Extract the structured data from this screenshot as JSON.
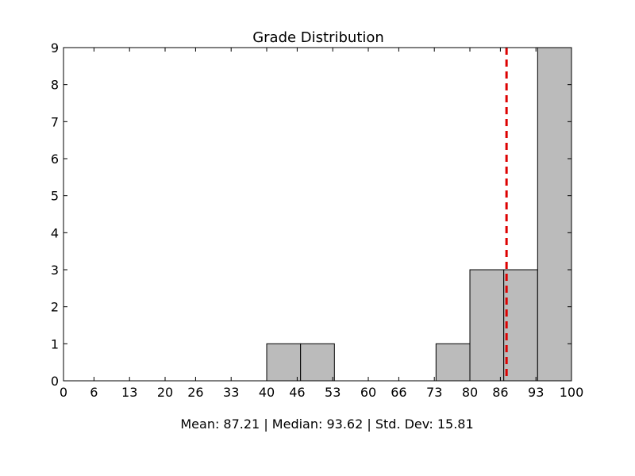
{
  "chart_data": {
    "type": "bar",
    "title": "Grade Distribution",
    "xlabel": "",
    "ylabel": "",
    "xlim": [
      0,
      100
    ],
    "ylim": [
      0,
      9
    ],
    "grid": false,
    "x_ticks": [
      "0",
      "6",
      "13",
      "20",
      "26",
      "33",
      "40",
      "46",
      "53",
      "60",
      "66",
      "73",
      "80",
      "86",
      "93",
      "100"
    ],
    "y_ticks": [
      "0",
      "1",
      "2",
      "3",
      "4",
      "5",
      "6",
      "7",
      "8",
      "9"
    ],
    "bin_edges": [
      0,
      6.67,
      13.33,
      20,
      26.67,
      33.33,
      40,
      46.67,
      53.33,
      60,
      66.67,
      73.33,
      80,
      86.67,
      93.33,
      100
    ],
    "counts": [
      0,
      0,
      0,
      0,
      0,
      0,
      1,
      1,
      0,
      0,
      0,
      1,
      3,
      3,
      9
    ],
    "mean_line": {
      "value": 87.21,
      "color": "#dd0000"
    },
    "bar_color": "#bbbbbb",
    "footer": "Mean: 87.21 | Median: 93.62 | Std. Dev: 15.81"
  }
}
